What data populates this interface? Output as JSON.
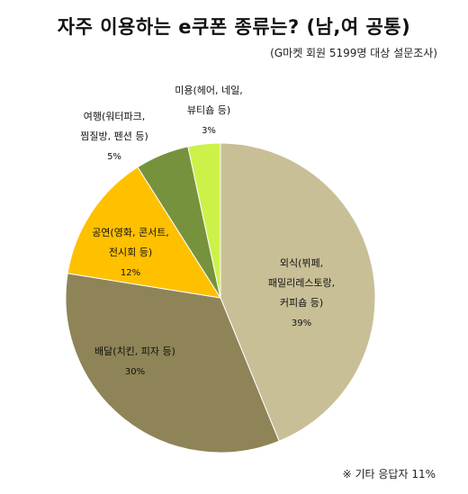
{
  "chart_data": {
    "type": "pie",
    "title": "자주 이용하는 e쿠폰 종류는? (남,여 공통)",
    "subtitle": "(G마켓 회원 5199명 대상 설문조사)",
    "footnote": "※ 기타 응답자 11%",
    "slices": [
      {
        "label_lines": [
          "외식(뷔페,",
          "패밀리레스토랑,",
          "커피숍 등)"
        ],
        "value": 39,
        "value_label": "39%",
        "color": "#C8BF97"
      },
      {
        "label_lines": [
          "배달(치킨, 피자 등)"
        ],
        "value": 30,
        "value_label": "30%",
        "color": "#8E8457"
      },
      {
        "label_lines": [
          "공연(영화, 콘서트,",
          "전시회 등)"
        ],
        "value": 12,
        "value_label": "12%",
        "color": "#FFC000"
      },
      {
        "label_lines": [
          "여행(워터파크,",
          "찜질방, 펜션 등)"
        ],
        "value": 5,
        "value_label": "5%",
        "color": "#77923C"
      },
      {
        "label_lines": [
          "미용(헤어, 네일,",
          "뷰티숍 등)"
        ],
        "value": 3,
        "value_label": "3%",
        "color": "#CCF24A"
      }
    ]
  }
}
